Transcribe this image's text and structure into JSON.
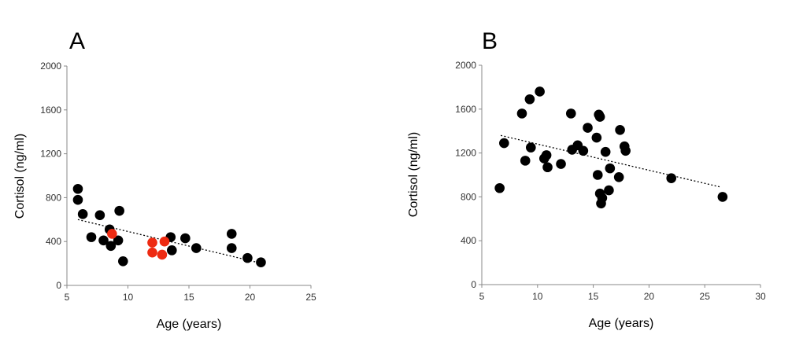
{
  "chart_data": [
    {
      "type": "scatter",
      "panel_label": "A",
      "xlabel": "Age (years)",
      "ylabel": "Cortisol (ng/ml)",
      "xlim": [
        5,
        25
      ],
      "ylim": [
        0,
        2000
      ],
      "x_ticks": [
        5,
        10,
        15,
        20,
        25
      ],
      "y_ticks": [
        0,
        400,
        800,
        1200,
        1600,
        2000
      ],
      "trendline": {
        "x": [
          5.9,
          20.8
        ],
        "y": [
          600,
          205
        ]
      },
      "series": [
        {
          "color": "#000000",
          "x": [
            5.9,
            5.9,
            6.3,
            7.0,
            7.7,
            8.0,
            8.5,
            8.6,
            9.2,
            9.3,
            9.6,
            13.5,
            13.6,
            14.7,
            15.6,
            18.5,
            18.5,
            19.8,
            20.9
          ],
          "y": [
            880,
            780,
            650,
            440,
            640,
            410,
            510,
            360,
            410,
            680,
            220,
            440,
            320,
            430,
            340,
            470,
            340,
            250,
            210
          ]
        },
        {
          "color": "#ee2b12",
          "x": [
            8.7,
            12.0,
            12.0,
            12.8,
            13.0
          ],
          "y": [
            470,
            390,
            300,
            280,
            400
          ]
        }
      ]
    },
    {
      "type": "scatter",
      "panel_label": "B",
      "xlabel": "Age (years)",
      "ylabel": "Cortisol (ng/ml)",
      "xlim": [
        5,
        30
      ],
      "ylim": [
        0,
        2000
      ],
      "x_ticks": [
        5,
        10,
        15,
        20,
        25,
        30
      ],
      "y_ticks": [
        0,
        400,
        800,
        1200,
        1600,
        2000
      ],
      "trendline": {
        "x": [
          6.7,
          26.4
        ],
        "y": [
          1360,
          890
        ]
      },
      "series": [
        {
          "color": "#000000",
          "x": [
            6.6,
            7.0,
            8.6,
            8.9,
            9.3,
            9.4,
            10.2,
            10.6,
            10.8,
            10.9,
            12.1,
            13.0,
            13.1,
            13.6,
            14.1,
            14.5,
            15.3,
            15.4,
            15.5,
            15.6,
            15.6,
            15.7,
            15.8,
            16.1,
            16.4,
            16.5,
            17.3,
            17.4,
            17.8,
            17.9,
            22.0,
            26.6
          ],
          "y": [
            880,
            1290,
            1560,
            1130,
            1690,
            1250,
            1760,
            1150,
            1180,
            1070,
            1100,
            1560,
            1230,
            1270,
            1220,
            1430,
            1340,
            1000,
            1550,
            1530,
            830,
            740,
            790,
            1210,
            860,
            1060,
            980,
            1410,
            1260,
            1220,
            970,
            800
          ]
        }
      ]
    }
  ]
}
